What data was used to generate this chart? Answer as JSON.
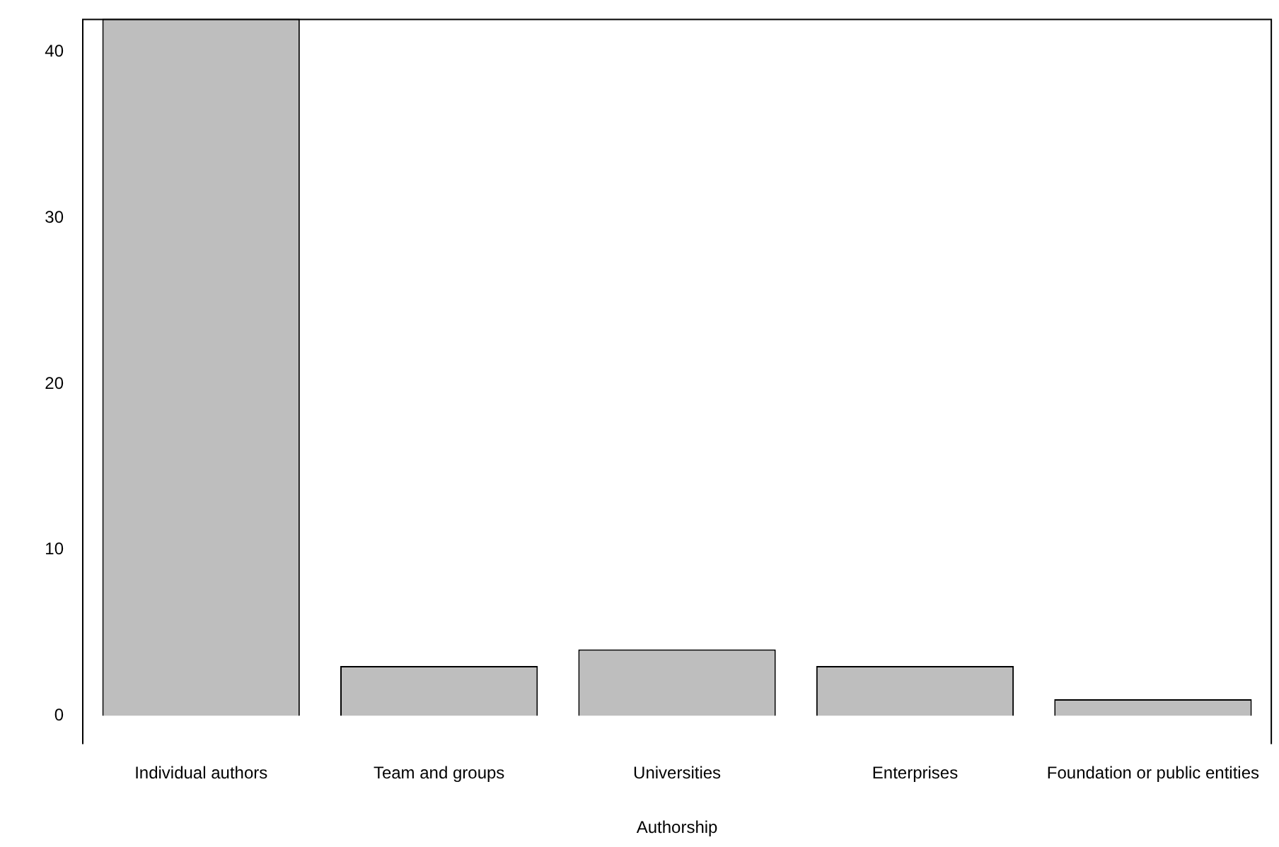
{
  "chart_data": {
    "type": "bar",
    "xlabel": "Authorship",
    "categories": [
      "Individual authors",
      "Team and groups",
      "Universities",
      "Enterprises",
      "Foundation or public entities"
    ],
    "values": [
      42,
      3,
      4,
      3,
      1
    ],
    "color": "#bebebe",
    "ylim": [
      -1.7,
      42
    ],
    "yticks": [
      0,
      10,
      20,
      30,
      40
    ],
    "grid": false,
    "legend": false
  }
}
